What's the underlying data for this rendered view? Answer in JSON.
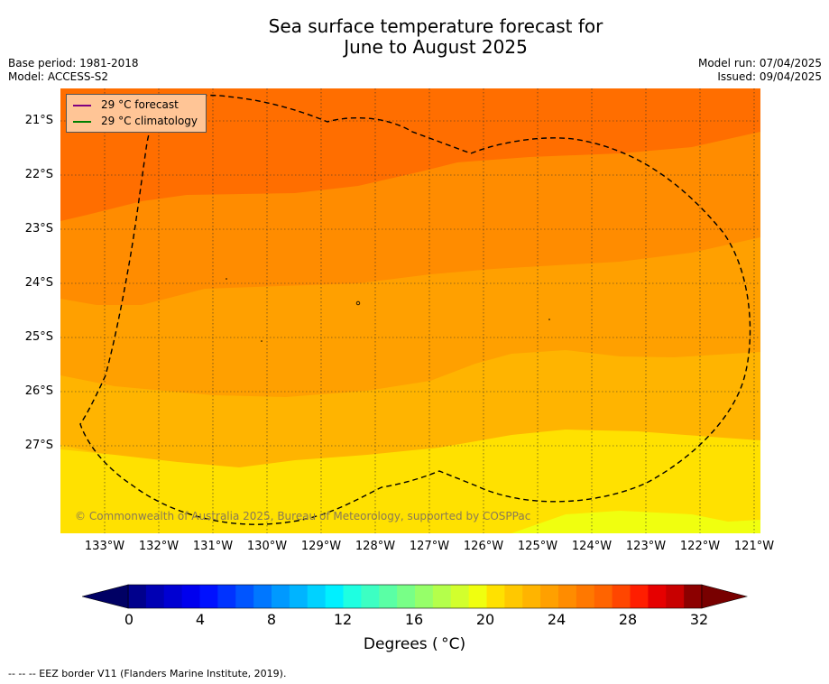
{
  "title": [
    "Sea surface temperature forecast for",
    "June to August 2025"
  ],
  "base_period": "Base period: 1981-2018",
  "model": "Model: ACCESS-S2",
  "model_run": "Model run: 07/04/2025",
  "issued": "Issued: 09/04/2025",
  "legend": [
    {
      "label": "29 °C  forecast",
      "color": "#800080"
    },
    {
      "label": "29 °C  climatology",
      "color": "#008000"
    }
  ],
  "copyright": "© Commonwealth of Australia 2025, Bureau of Meteorology, supported by COSPPac",
  "lat_labels": [
    "21°S",
    "22°S",
    "23°S",
    "24°S",
    "25°S",
    "26°S",
    "27°S"
  ],
  "lon_labels": [
    "133°W",
    "132°W",
    "131°W",
    "130°W",
    "129°W",
    "128°W",
    "127°W",
    "126°W",
    "125°W",
    "124°W",
    "123°W",
    "122°W",
    "121°W"
  ],
  "colorbar": {
    "ticks": [
      "0",
      "4",
      "8",
      "12",
      "16",
      "20",
      "24",
      "28",
      "32"
    ],
    "label": "Degrees ( °C)",
    "min": 0,
    "max": 32,
    "step": 1,
    "colors": [
      "#00008c",
      "#0000b4",
      "#0000d2",
      "#0000ee",
      "#0011ff",
      "#0033ff",
      "#0055ff",
      "#0077ff",
      "#0099ff",
      "#00b4ff",
      "#00d2ff",
      "#00f0ff",
      "#1effe1",
      "#3cffc3",
      "#5affa5",
      "#78ff87",
      "#96ff69",
      "#b4ff4b",
      "#d2ff2d",
      "#f0ff0f",
      "#ffe100",
      "#ffc800",
      "#ffb400",
      "#ffa000",
      "#ff8c00",
      "#ff7800",
      "#ff6400",
      "#ff4600",
      "#ff1e00",
      "#e60000",
      "#c80000",
      "#8c0000"
    ],
    "under_color": "#000064",
    "over_color": "#780000"
  },
  "map_colors": {
    "band_29": "#ff6e00",
    "band_28": "#ff7f00",
    "band_27": "#ff8c00",
    "band_26": "#ffa000",
    "band_25": "#ffb400",
    "band_24": "#ffc800",
    "band_23": "#ffe100",
    "band_22": "#f0ff0f"
  },
  "footnote": "--  --  -- EEZ border V11 (Flanders Marine Institute, 2019)."
}
